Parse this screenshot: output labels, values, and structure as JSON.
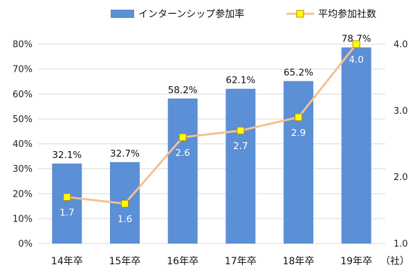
{
  "chart_data": {
    "type": "bar",
    "categories": [
      "14年卒",
      "15年卒",
      "16年卒",
      "17年卒",
      "18年卒",
      "19年卒"
    ],
    "series": [
      {
        "name": "インターンシップ参加率",
        "type": "bar",
        "axis": "left",
        "values": [
          32.1,
          32.7,
          58.2,
          62.1,
          65.2,
          78.7
        ],
        "labels": [
          "32.1%",
          "32.7%",
          "58.2%",
          "62.1%",
          "65.2%",
          "78.7%"
        ],
        "color": "#5b8fd6"
      },
      {
        "name": "平均参加社数",
        "type": "line",
        "axis": "right",
        "values": [
          1.7,
          1.6,
          2.6,
          2.7,
          2.9,
          4.0
        ],
        "labels": [
          "1.7",
          "1.6",
          "2.6",
          "2.7",
          "2.9",
          "4.0"
        ],
        "color": "#f5c08e",
        "marker_color": "#ffff00",
        "marker_border": "#b58a00"
      }
    ],
    "y_left": {
      "lim": [
        0,
        80
      ],
      "ticks": [
        0,
        10,
        20,
        30,
        40,
        50,
        60,
        70,
        80
      ],
      "tick_labels": [
        "0%",
        "10%",
        "20%",
        "30%",
        "40%",
        "50%",
        "60%",
        "70%",
        "80%"
      ]
    },
    "y_right": {
      "lim": [
        1.0,
        4.0
      ],
      "ticks": [
        1.0,
        2.0,
        3.0,
        4.0
      ],
      "tick_labels": [
        "1.0",
        "2.0",
        "3.0",
        "4.0"
      ],
      "unit": "（社）"
    },
    "grid": true,
    "legend": "top",
    "gridline_color": "#d9d9d9"
  }
}
